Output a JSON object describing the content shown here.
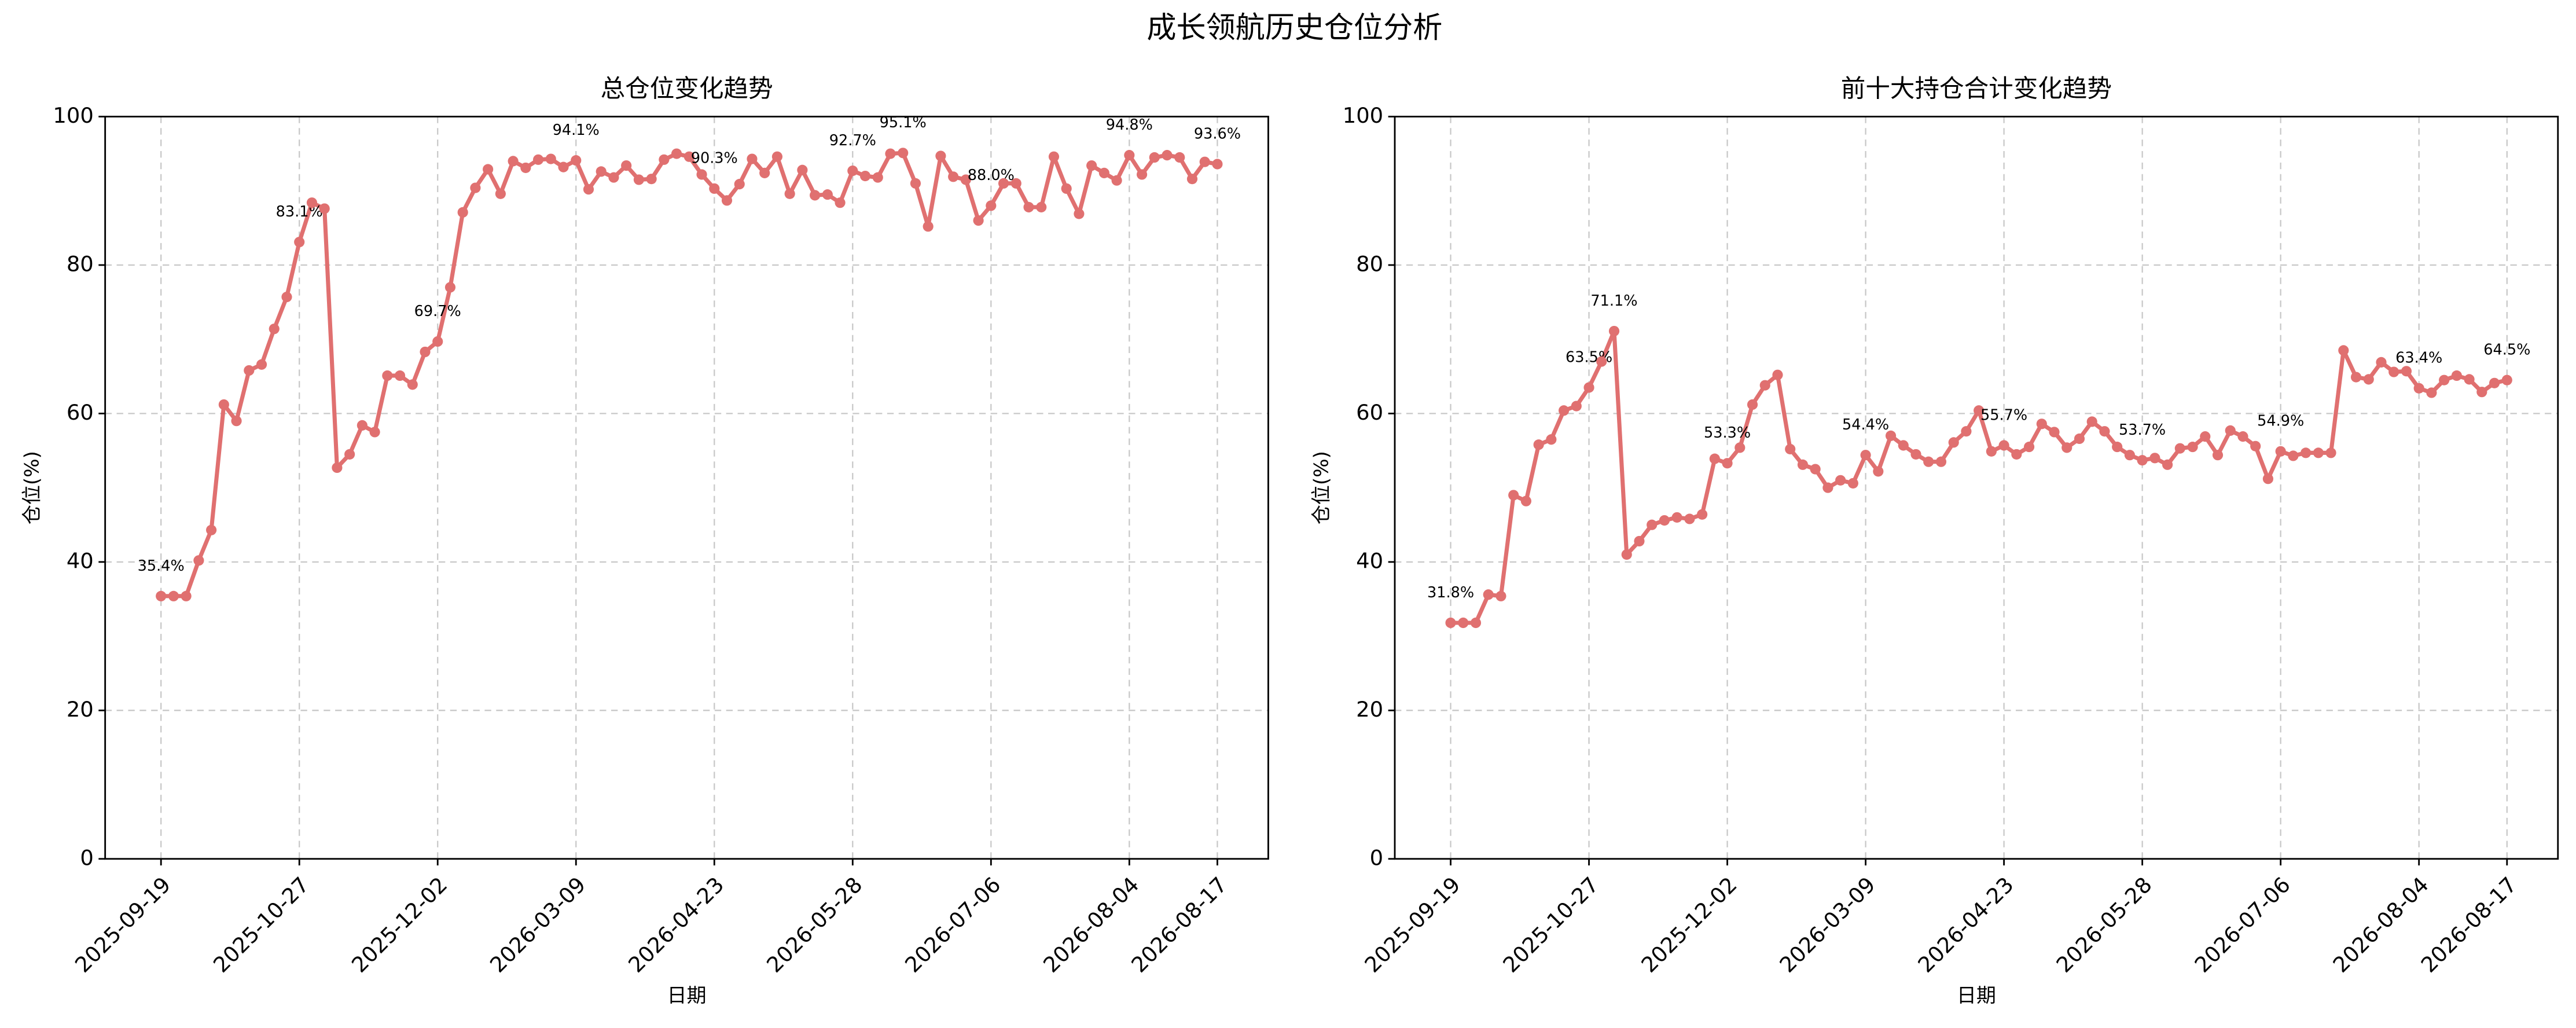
{
  "title": "成长领航历史仓位分析",
  "chart_data": [
    {
      "type": "line",
      "title": "总仓位变化趋势",
      "xlabel": "日期",
      "ylabel": "仓位(%)",
      "categories": [
        "2025-09-19",
        null,
        null,
        null,
        null,
        null,
        null,
        null,
        null,
        null,
        null,
        "2025-10-27",
        null,
        null,
        null,
        null,
        null,
        null,
        null,
        null,
        null,
        null,
        "2025-12-02",
        null,
        null,
        null,
        null,
        null,
        null,
        null,
        null,
        null,
        null,
        "2026-03-09",
        null,
        null,
        null,
        null,
        null,
        null,
        null,
        null,
        null,
        null,
        "2026-04-23",
        null,
        null,
        null,
        null,
        null,
        null,
        null,
        null,
        null,
        null,
        "2026-05-28",
        null,
        null,
        null,
        null,
        null,
        null,
        null,
        null,
        null,
        null,
        "2026-07-06",
        null,
        null,
        null,
        null,
        null,
        null,
        null,
        null,
        null,
        null,
        "2026-08-04",
        null,
        null,
        null,
        null,
        null,
        null,
        "2026-08-17"
      ],
      "values": [
        35.4,
        35.4,
        35.4,
        40.2,
        44.3,
        61.2,
        59.0,
        65.8,
        66.6,
        71.4,
        75.7,
        83.1,
        88.4,
        87.6,
        52.7,
        54.5,
        58.4,
        57.5,
        65.1,
        65.1,
        63.9,
        68.3,
        69.7,
        77.0,
        87.1,
        90.4,
        92.9,
        89.6,
        94.0,
        93.1,
        94.2,
        94.3,
        93.2,
        94.1,
        90.2,
        92.6,
        91.8,
        93.4,
        91.5,
        91.6,
        94.2,
        95.0,
        94.6,
        92.2,
        90.3,
        88.7,
        90.9,
        94.3,
        92.4,
        94.6,
        89.6,
        92.8,
        89.4,
        89.5,
        88.4,
        92.7,
        92.0,
        91.8,
        95.0,
        95.1,
        91.0,
        85.2,
        94.7,
        91.9,
        91.5,
        86.0,
        88.0,
        91.0,
        91.0,
        87.8,
        87.8,
        94.6,
        90.3,
        86.9,
        93.4,
        92.4,
        91.4,
        94.8,
        92.2,
        94.5,
        94.8,
        94.5,
        91.6,
        93.9,
        93.6
      ],
      "value_labels": [
        "35.4%",
        null,
        null,
        null,
        null,
        null,
        null,
        null,
        null,
        null,
        null,
        "83.1%",
        null,
        null,
        null,
        null,
        null,
        null,
        null,
        null,
        null,
        null,
        "69.7%",
        null,
        null,
        null,
        null,
        null,
        null,
        null,
        null,
        null,
        null,
        "94.1%",
        null,
        null,
        null,
        null,
        null,
        null,
        null,
        null,
        null,
        null,
        "90.3%",
        null,
        null,
        null,
        null,
        null,
        null,
        null,
        null,
        null,
        null,
        "92.7%",
        null,
        null,
        null,
        "95.1%",
        null,
        null,
        null,
        null,
        null,
        null,
        "88.0%",
        null,
        null,
        null,
        null,
        null,
        null,
        null,
        null,
        null,
        null,
        "94.8%",
        null,
        null,
        null,
        null,
        null,
        null,
        "93.6%"
      ],
      "color": "#e07070",
      "ylim": [
        0,
        100
      ],
      "yticks": [
        0,
        20,
        40,
        60,
        80,
        100
      ],
      "grid": true
    },
    {
      "type": "line",
      "title": "前十大持仓合计变化趋势",
      "xlabel": "日期",
      "ylabel": "仓位(%)",
      "categories": [
        "2025-09-19",
        null,
        null,
        null,
        null,
        null,
        null,
        null,
        null,
        null,
        null,
        "2025-10-27",
        null,
        null,
        null,
        null,
        null,
        null,
        null,
        null,
        null,
        null,
        "2025-12-02",
        null,
        null,
        null,
        null,
        null,
        null,
        null,
        null,
        null,
        null,
        "2026-03-09",
        null,
        null,
        null,
        null,
        null,
        null,
        null,
        null,
        null,
        null,
        "2026-04-23",
        null,
        null,
        null,
        null,
        null,
        null,
        null,
        null,
        null,
        null,
        "2026-05-28",
        null,
        null,
        null,
        null,
        null,
        null,
        null,
        null,
        null,
        null,
        "2026-07-06",
        null,
        null,
        null,
        null,
        null,
        null,
        null,
        null,
        null,
        null,
        "2026-08-04",
        null,
        null,
        null,
        null,
        null,
        null,
        "2026-08-17"
      ],
      "values": [
        31.8,
        31.8,
        31.8,
        35.6,
        35.4,
        49.0,
        48.2,
        55.8,
        56.5,
        60.4,
        61.0,
        63.5,
        67.0,
        71.1,
        41.0,
        42.8,
        45.0,
        45.6,
        46.0,
        45.8,
        46.4,
        53.9,
        53.3,
        55.4,
        61.2,
        63.8,
        65.2,
        55.2,
        53.1,
        52.5,
        50.0,
        51.0,
        50.6,
        54.4,
        52.2,
        57.0,
        55.7,
        54.5,
        53.5,
        53.5,
        56.1,
        57.6,
        60.4,
        54.9,
        55.7,
        54.5,
        55.5,
        58.6,
        57.5,
        55.4,
        56.6,
        58.9,
        57.6,
        55.5,
        54.4,
        53.7,
        54.0,
        53.1,
        55.3,
        55.5,
        56.9,
        54.4,
        57.7,
        56.9,
        55.6,
        51.2,
        54.9,
        54.3,
        54.7,
        54.7,
        54.7,
        68.5,
        64.9,
        64.6,
        66.9,
        65.6,
        65.7,
        63.4,
        62.8,
        64.5,
        65.1,
        64.6,
        62.9,
        64.1,
        64.5
      ],
      "value_labels": [
        "31.8%",
        null,
        null,
        null,
        null,
        null,
        null,
        null,
        null,
        null,
        null,
        "63.5%",
        null,
        "71.1%",
        null,
        null,
        null,
        null,
        null,
        null,
        null,
        null,
        "53.3%",
        null,
        null,
        null,
        null,
        null,
        null,
        null,
        null,
        null,
        null,
        "54.4%",
        null,
        null,
        null,
        null,
        null,
        null,
        null,
        null,
        null,
        null,
        "55.7%",
        null,
        null,
        null,
        null,
        null,
        null,
        null,
        null,
        null,
        null,
        "53.7%",
        null,
        null,
        null,
        null,
        null,
        null,
        null,
        null,
        null,
        null,
        "54.9%",
        null,
        null,
        null,
        null,
        null,
        null,
        null,
        null,
        null,
        null,
        "63.4%",
        null,
        null,
        null,
        null,
        null,
        null,
        "64.5%"
      ],
      "color": "#e07070",
      "ylim": [
        0,
        100
      ],
      "yticks": [
        0,
        20,
        40,
        60,
        80,
        100
      ],
      "grid": true
    }
  ]
}
